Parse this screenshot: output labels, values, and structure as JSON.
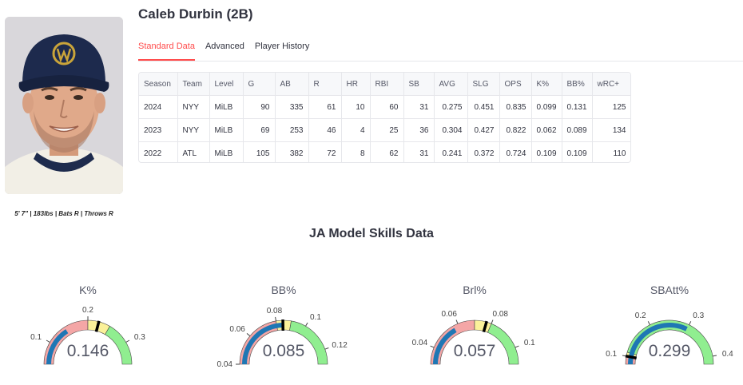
{
  "player": {
    "name": "Caleb Durbin (2B)",
    "bio": "5' 7\" | 183lbs | Bats R | Throws R"
  },
  "tabs": [
    {
      "label": "Standard Data",
      "active": true
    },
    {
      "label": "Advanced",
      "active": false
    },
    {
      "label": "Player History",
      "active": false
    }
  ],
  "table": {
    "headers": [
      "Season",
      "Team",
      "Level",
      "G",
      "AB",
      "R",
      "HR",
      "RBI",
      "SB",
      "AVG",
      "SLG",
      "OPS",
      "K%",
      "BB%",
      "wRC+"
    ],
    "rows": [
      [
        "2024",
        "NYY",
        "MiLB",
        "90",
        "335",
        "61",
        "10",
        "60",
        "31",
        "0.275",
        "0.451",
        "0.835",
        "0.099",
        "0.131",
        "125"
      ],
      [
        "2023",
        "NYY",
        "MiLB",
        "69",
        "253",
        "46",
        "4",
        "25",
        "36",
        "0.304",
        "0.427",
        "0.822",
        "0.062",
        "0.089",
        "134"
      ],
      [
        "2022",
        "ATL",
        "MiLB",
        "105",
        "382",
        "72",
        "8",
        "62",
        "31",
        "0.241",
        "0.372",
        "0.724",
        "0.109",
        "0.109",
        "110"
      ]
    ]
  },
  "section_title": "JA Model Skills Data",
  "gauges": [
    {
      "title": "K%",
      "value": 0.146,
      "display": "0.146",
      "min": 0.05,
      "max": 0.35,
      "zones": [
        [
          0.05,
          0.2,
          "#f4a6a6"
        ],
        [
          0.2,
          0.25,
          "#fbf19a"
        ],
        [
          0.25,
          0.35,
          "#90ee90"
        ]
      ],
      "threshold": 0.224,
      "ticks": [
        "0.1",
        "0.2",
        "0.3"
      ]
    },
    {
      "title": "BB%",
      "value": 0.085,
      "display": "0.085",
      "min": 0.04,
      "max": 0.13,
      "zones": [
        [
          0.04,
          0.08,
          "#f4a6a6"
        ],
        [
          0.08,
          0.09,
          "#fbf19a"
        ],
        [
          0.09,
          0.13,
          "#90ee90"
        ]
      ],
      "threshold": 0.0845,
      "ticks": [
        "0.04",
        "0.06",
        "0.08",
        "0.1",
        "0.12"
      ]
    },
    {
      "title": "Brl%",
      "value": 0.057,
      "display": "0.057",
      "min": 0.03,
      "max": 0.11,
      "zones": [
        [
          0.03,
          0.07,
          "#f4a6a6"
        ],
        [
          0.07,
          0.08,
          "#fbf19a"
        ],
        [
          0.08,
          0.11,
          "#90ee90"
        ]
      ],
      "threshold": 0.077,
      "ticks": [
        "0.04",
        "0.06",
        "0.08",
        "0.1"
      ]
    },
    {
      "title": "SBAtt%",
      "value": 0.299,
      "display": "0.299",
      "min": 0.08,
      "max": 0.42,
      "zones": [
        [
          0.08,
          0.1,
          "#f4a6a6"
        ],
        [
          0.1,
          0.11,
          "#fbf19a"
        ],
        [
          0.11,
          0.42,
          "#90ee90"
        ]
      ],
      "threshold": 0.1,
      "ticks": [
        "0.1",
        "0.2",
        "0.3",
        "0.4"
      ]
    }
  ],
  "colors": {
    "accent": "#ff4b4b",
    "bar": "#1f77b4",
    "red_zone": "#f4a6a6",
    "yellow_zone": "#fbf19a",
    "green_zone": "#90ee90"
  }
}
